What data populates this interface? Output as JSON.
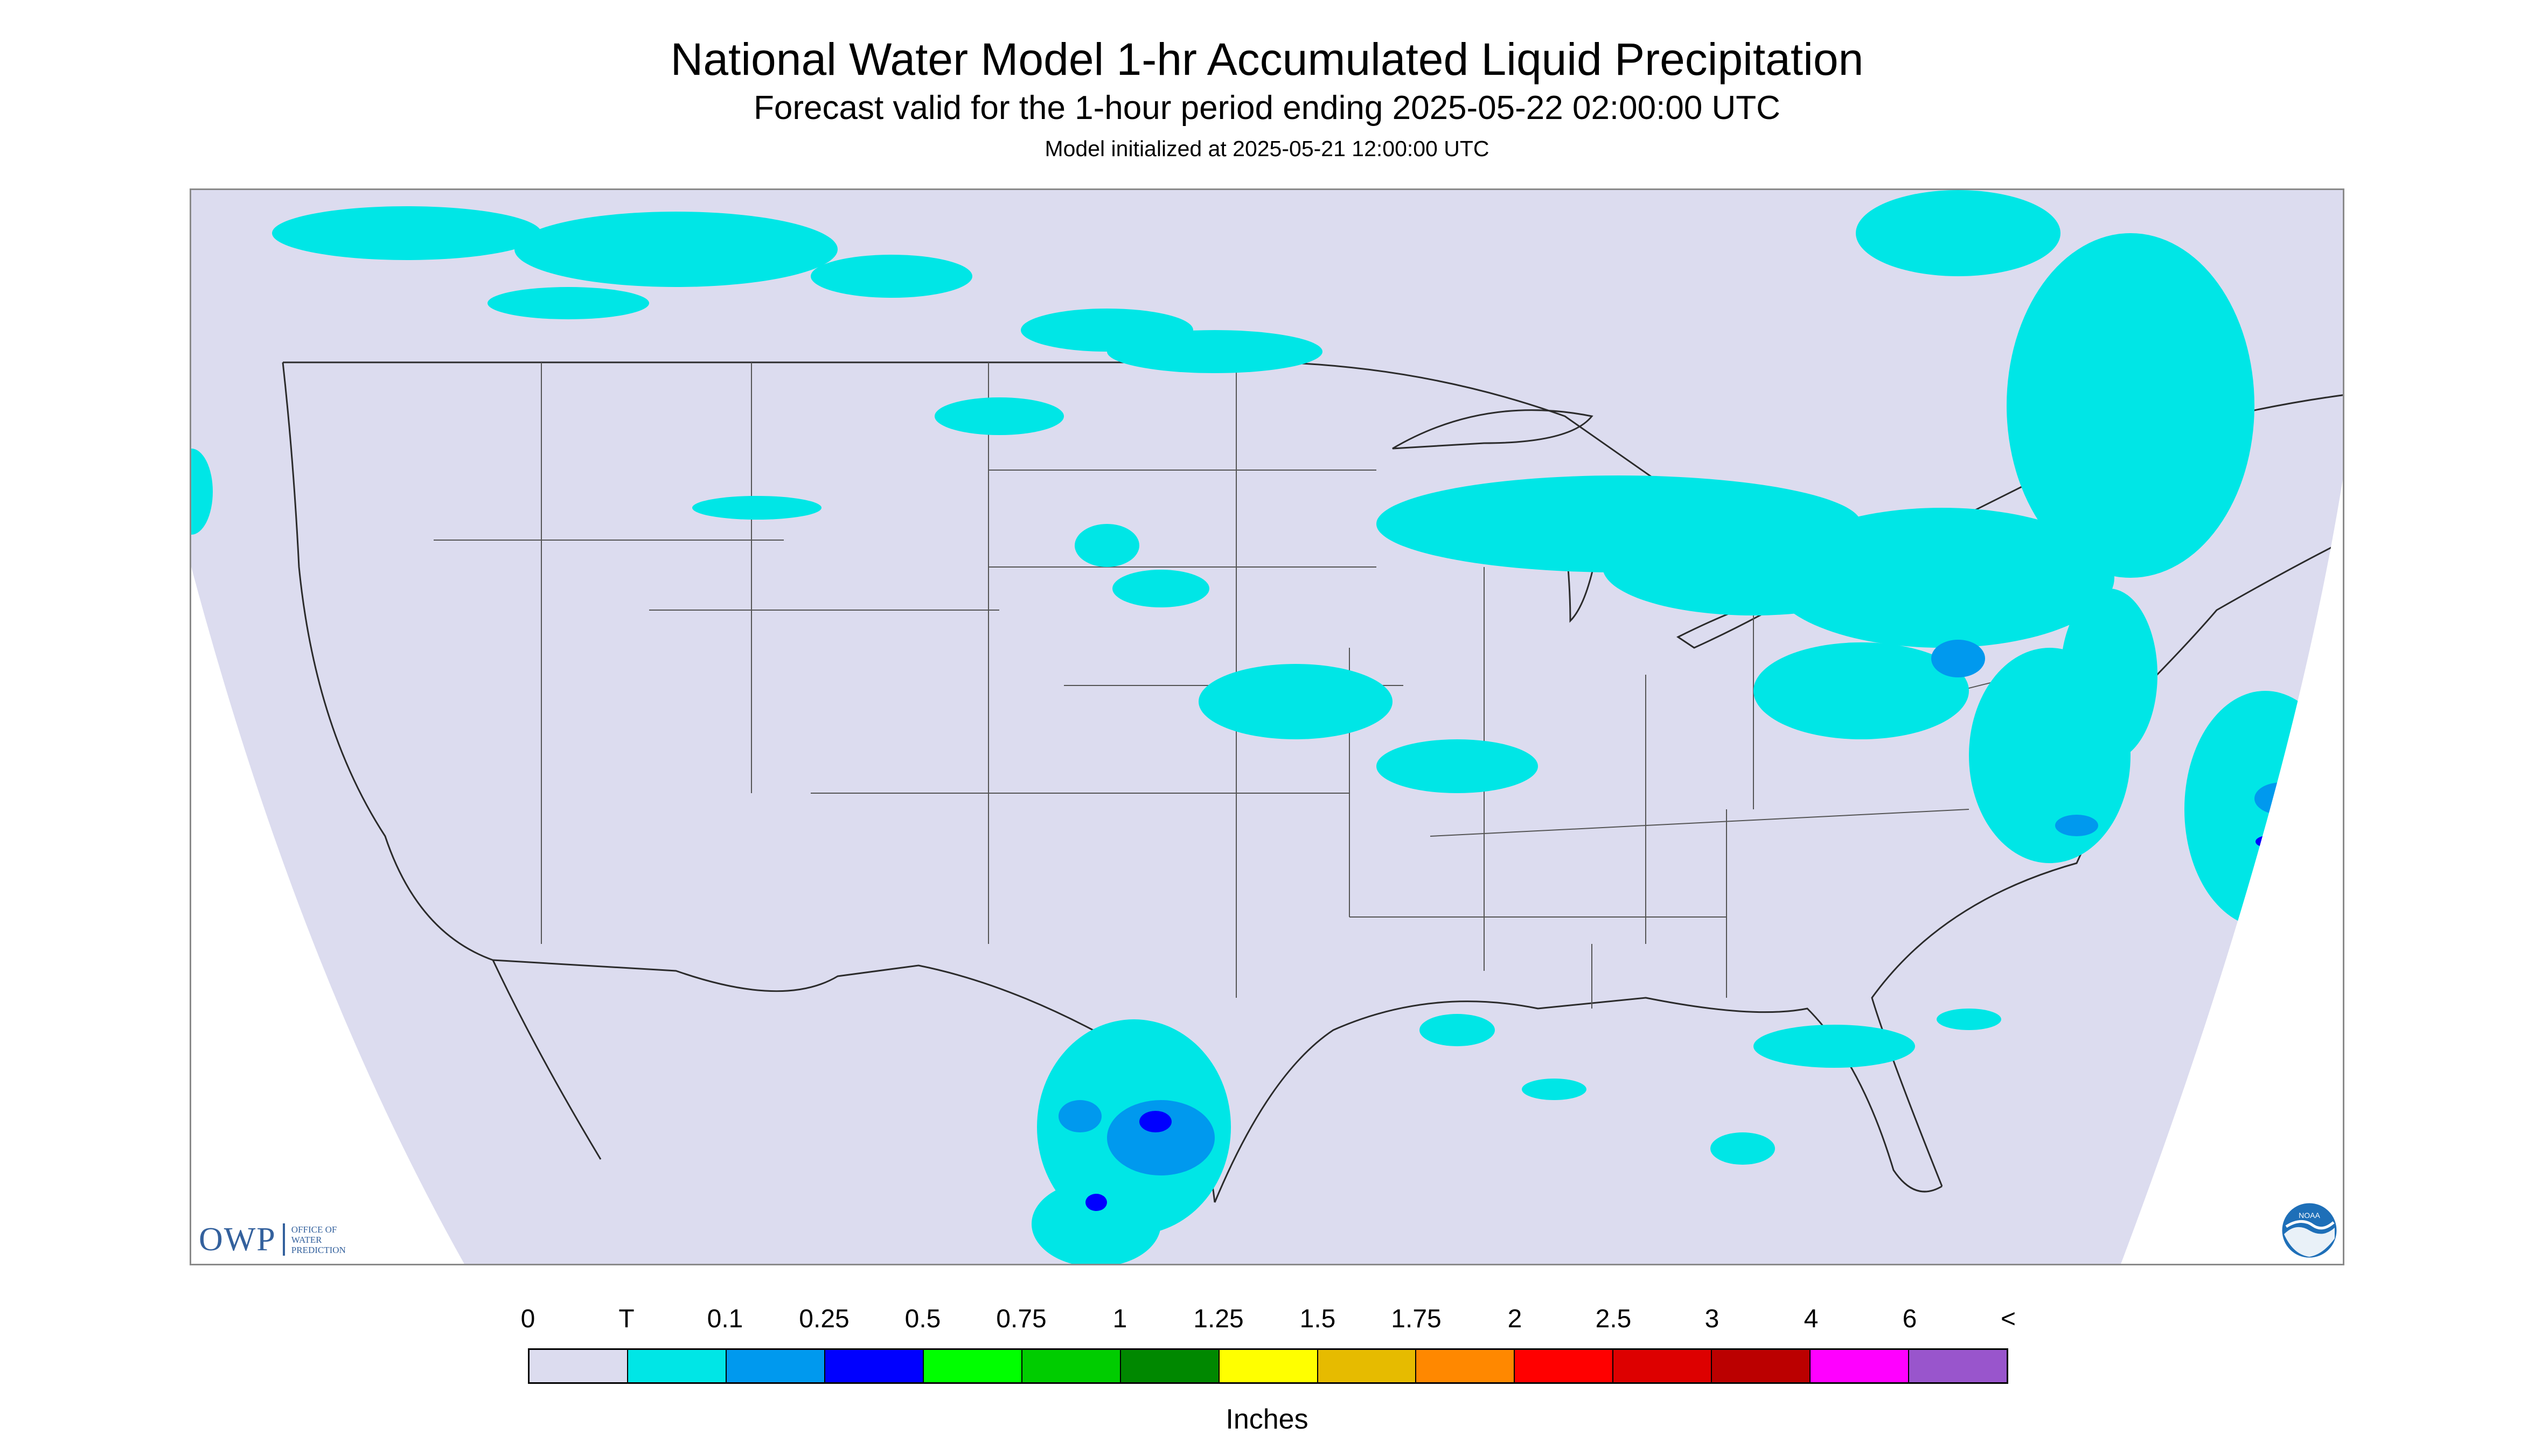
{
  "header": {
    "title": "National Water Model 1-hr Accumulated Liquid Precipitation",
    "subtitle": "Forecast valid for the 1-hour period ending 2025-05-22 02:00:00 UTC",
    "init_line": "Model initialized at 2025-05-21 12:00:00 UTC"
  },
  "map": {
    "background_color": "#dcdcef",
    "outside_domain_color": "#ffffff",
    "boundary_color": "#2b2b2b",
    "precip_regions": [
      {
        "name": "Pacific Northwest / British Columbia",
        "category": "T"
      },
      {
        "name": "Northern Plains / Montana / Dakotas",
        "category": "T"
      },
      {
        "name": "Upper Midwest / Great Lakes band",
        "category": "T"
      },
      {
        "name": "Quebec / New England",
        "category": "T"
      },
      {
        "name": "Mid-Atlantic / Northeast",
        "category": "T"
      },
      {
        "name": "Pennsylvania",
        "category": "0.1"
      },
      {
        "name": "Offshore Atlantic",
        "category": "0.25"
      },
      {
        "name": "South Texas / Northern Mexico",
        "category": "0.25"
      },
      {
        "name": "Gulf Coast / Florida Panhandle",
        "category": "T"
      }
    ]
  },
  "logos": {
    "owp_text": "OWP",
    "owp_sub": [
      "OFFICE OF",
      "WATER",
      "PREDICTION"
    ],
    "noaa_text": "NOAA"
  },
  "legend": {
    "labels": [
      "0",
      "T",
      "0.1",
      "0.25",
      "0.5",
      "0.75",
      "1",
      "1.25",
      "1.5",
      "1.75",
      "2",
      "2.5",
      "3",
      "4",
      "6",
      "<"
    ],
    "colors": [
      "#dcdcef",
      "#00e6e6",
      "#0099ee",
      "#0000ff",
      "#00ff00",
      "#00cc00",
      "#008800",
      "#ffff00",
      "#e6bb00",
      "#ff8800",
      "#ff0000",
      "#dd0000",
      "#bb0000",
      "#ff00ff",
      "#9955cc"
    ],
    "units": "Inches"
  }
}
